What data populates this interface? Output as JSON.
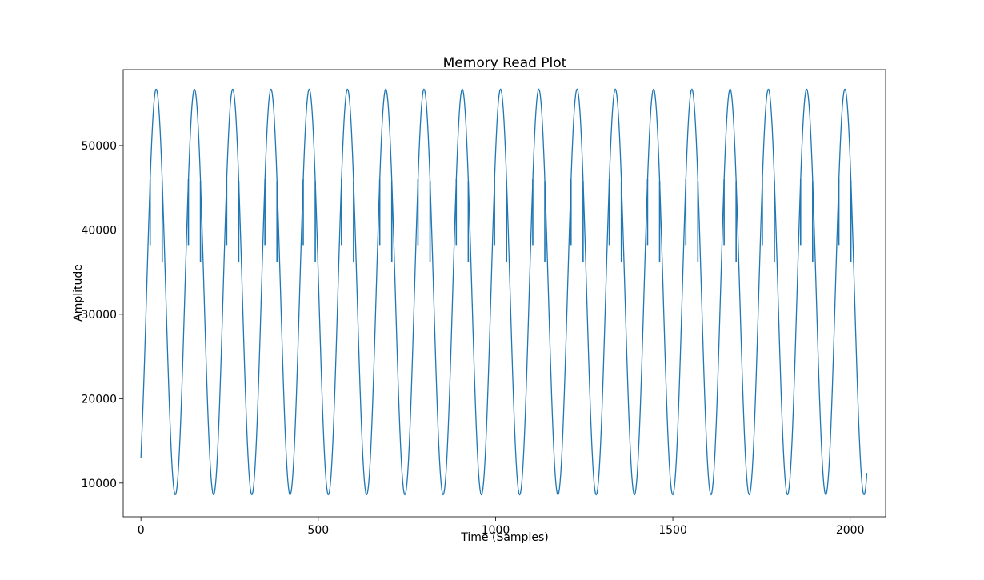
{
  "chart_data": {
    "type": "line",
    "title": "Memory Read Plot",
    "xlabel": "Time (Samples)",
    "ylabel": "Amplitude",
    "xlim": [
      -50,
      2100
    ],
    "ylim": [
      6000,
      59000
    ],
    "x_ticks": [
      0,
      500,
      1000,
      1500,
      2000
    ],
    "y_ticks": [
      10000,
      20000,
      30000,
      40000,
      50000
    ],
    "x_tick_labels": [
      "0",
      "500",
      "1000",
      "1500",
      "2000"
    ],
    "y_tick_labels": [
      "10000",
      "20000",
      "30000",
      "40000",
      "50000"
    ],
    "grid": false,
    "legend": "none",
    "line_color": "#1f77b4",
    "series": [
      {
        "waveform": "sine",
        "x_start": 0,
        "x_end": 2047,
        "period_samples": 107.9,
        "first_peak_x": 43,
        "min": 8600,
        "max": 56700,
        "start_value": 13000,
        "end_value": 11200,
        "spike_pairs_per_cycle": [
          {
            "x_offset_from_peak": -17,
            "high": 46000,
            "low": 38200
          },
          {
            "x_offset_from_peak": 17,
            "high": 45800,
            "low": 36200
          }
        ]
      }
    ]
  }
}
